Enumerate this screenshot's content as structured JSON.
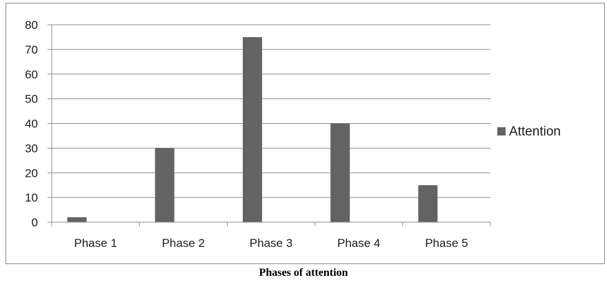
{
  "chart_data": {
    "type": "bar",
    "categories": [
      "Phase 1",
      "Phase 2",
      "Phase 3",
      "Phase 4",
      "Phase 5"
    ],
    "series": [
      {
        "name": "Attention",
        "values": [
          2,
          30,
          75,
          40,
          15
        ],
        "color": "#636363"
      }
    ],
    "y_ticks": [
      "0",
      "10",
      "20",
      "30",
      "40",
      "50",
      "60",
      "70",
      "80"
    ],
    "ylim": [
      0,
      80
    ],
    "grid": true,
    "legend_position": "right"
  },
  "caption": "Phases of attention",
  "colors": {
    "bar": "#636363",
    "grid": "#8c8c8c",
    "frame": "#8c8c8c"
  }
}
